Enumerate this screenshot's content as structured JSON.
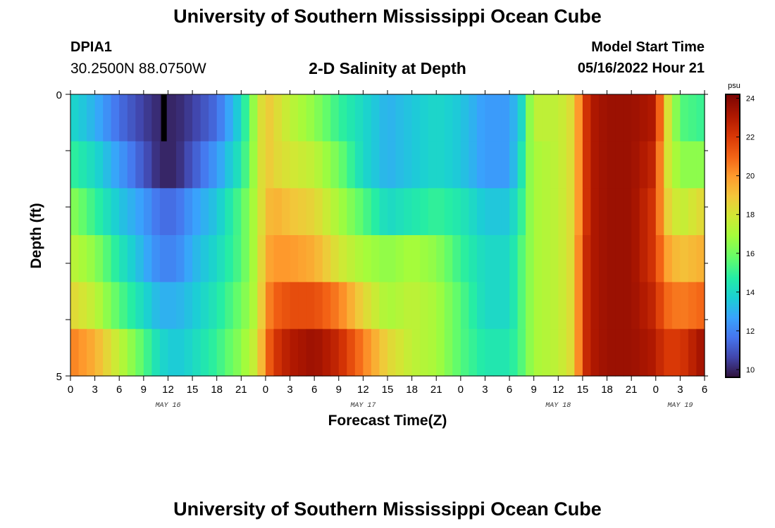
{
  "header": {
    "title_top": "University of Southern Mississippi Ocean Cube",
    "title_bottom": "University of Southern Mississippi Ocean Cube",
    "station_id": "DPIA1",
    "station_coords": "30.2500N  88.0750W",
    "plot_title": "2-D Salinity at Depth",
    "model_start_label": "Model Start Time",
    "model_start_value": "05/16/2022 Hour 21"
  },
  "colors": {
    "colormap": "turbo",
    "ticks": "#000000"
  },
  "chart_data": {
    "type": "heatmap",
    "title": "2-D Salinity at Depth",
    "xlabel": "Forecast Time(Z)",
    "ylabel": "Depth (ft)",
    "x_tick_labels": [
      "0",
      "3",
      "6",
      "9",
      "12",
      "15",
      "18",
      "21",
      "0",
      "3",
      "6",
      "9",
      "12",
      "15",
      "18",
      "21",
      "0",
      "3",
      "6",
      "9",
      "12",
      "15",
      "18",
      "21",
      "0",
      "3",
      "6"
    ],
    "x_range_hours": [
      0,
      78
    ],
    "date_labels": [
      {
        "label": "MAY 16",
        "hour": 12
      },
      {
        "label": "MAY 17",
        "hour": 36
      },
      {
        "label": "MAY 18",
        "hour": 60
      },
      {
        "label": "MAY 19",
        "hour": 75
      }
    ],
    "y_tick_labels": [
      "0",
      "5"
    ],
    "y_range": [
      0,
      5
    ],
    "depth_bins": [
      0.25,
      1.25,
      2.25,
      3.25,
      4.25,
      4.75
    ],
    "colorbar": {
      "unit": "psu",
      "min": 9.6,
      "max": 24.2,
      "ticks": [
        "24",
        "22",
        "20",
        "18",
        "16",
        "14",
        "12",
        "10"
      ]
    },
    "missing_value_marker_hour": 11.5,
    "salinity_keyframes": {
      "hours": [
        0,
        3,
        6,
        9,
        11,
        13,
        15,
        18,
        21,
        23,
        24,
        25,
        27,
        30,
        33,
        36,
        39,
        42,
        45,
        48,
        51,
        54,
        55.5,
        56.5,
        57,
        60,
        62,
        63,
        64,
        66,
        69,
        72,
        73,
        75,
        78
      ],
      "rows": [
        [
          14,
          13,
          11.5,
          10.5,
          10,
          10,
          10.5,
          11.5,
          14,
          17.5,
          19,
          18.5,
          17.5,
          16.5,
          15,
          14,
          13,
          13.5,
          14,
          13.5,
          12.5,
          12.5,
          14,
          16.5,
          17.5,
          17.5,
          18.5,
          21.5,
          23,
          23.5,
          23.5,
          23,
          19,
          15.5,
          15
        ],
        [
          15,
          14,
          12.5,
          11,
          10,
          10,
          11,
          12.5,
          14.5,
          17.5,
          19,
          18.5,
          18,
          17.5,
          16,
          14,
          13,
          13.5,
          14,
          13.5,
          12.5,
          12.5,
          14.5,
          16.5,
          17,
          17.5,
          18.5,
          21.5,
          23,
          23.5,
          23.5,
          22.5,
          18.5,
          16.5,
          16.5
        ],
        [
          16.5,
          15,
          13.5,
          12.5,
          11.5,
          11.5,
          12.5,
          13.5,
          15.5,
          17.5,
          19,
          19.5,
          19,
          18.5,
          17,
          15.5,
          14,
          14.5,
          15,
          14.5,
          13.5,
          13.5,
          15,
          16.5,
          17,
          17.5,
          18.5,
          21.5,
          23,
          23.5,
          23.5,
          22,
          19,
          17.5,
          18.5
        ],
        [
          17.5,
          16.5,
          14.5,
          13,
          12,
          12,
          13,
          14,
          15.5,
          17.5,
          19.5,
          20,
          20,
          19.5,
          18,
          17,
          16.5,
          17,
          16.5,
          15,
          14,
          14,
          15.5,
          16.5,
          17,
          17.5,
          18.5,
          22,
          23,
          23.5,
          23.5,
          22,
          20,
          19,
          19.5
        ],
        [
          18.5,
          17.5,
          15.5,
          14,
          13,
          13,
          13.5,
          14.5,
          16,
          17.5,
          20,
          21,
          21.5,
          21.5,
          20.5,
          18.5,
          17,
          17.5,
          17,
          15.5,
          14,
          14,
          15.5,
          16.5,
          17,
          17.5,
          18.5,
          22,
          23,
          23.5,
          23.5,
          22.5,
          21,
          20.5,
          21
        ],
        [
          20.5,
          19.5,
          17.5,
          15.5,
          14,
          13.5,
          14,
          15,
          16.5,
          18,
          20.5,
          22,
          23,
          23.5,
          22.5,
          20.5,
          18.5,
          17.5,
          17,
          15.5,
          14.5,
          14.5,
          15.5,
          16.5,
          17,
          17.5,
          18.5,
          22,
          23,
          23.5,
          23.5,
          23,
          22,
          22,
          23.5
        ]
      ]
    }
  }
}
